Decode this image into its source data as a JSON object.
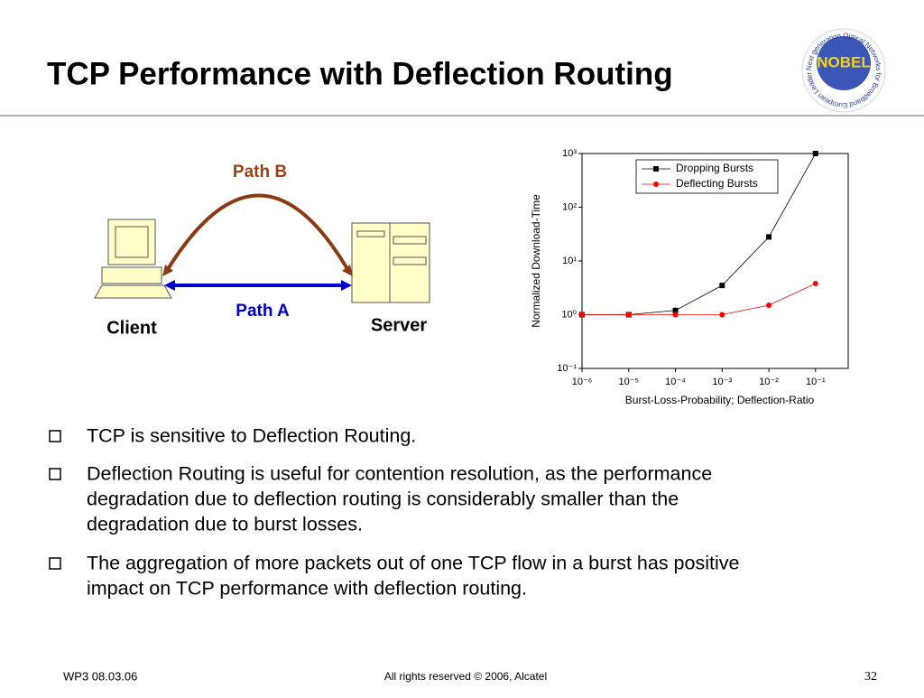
{
  "header": {
    "title": "TCP Performance with Deflection Routing",
    "logo": "NOBEL",
    "logo_ring": "Next generation Optical Networks for Broadband European Leadership"
  },
  "diagram": {
    "path_b": "Path B",
    "path_a": "Path A",
    "client": "Client",
    "server": "Server"
  },
  "chart_data": {
    "type": "line",
    "log_x": true,
    "log_y": true,
    "xlabel": "Burst-Loss-Probability; Deflection-Ratio",
    "ylabel": "Normalized Download-Time",
    "x": [
      1e-06,
      1e-05,
      0.0001,
      0.001,
      0.01,
      0.1
    ],
    "series": [
      {
        "name": "Dropping Bursts",
        "color": "#000000",
        "marker": "square",
        "values": [
          1,
          1,
          1.2,
          3.5,
          28,
          1000
        ]
      },
      {
        "name": "Deflecting Bursts",
        "color": "#ff0000",
        "marker": "circle",
        "values": [
          1,
          1,
          1,
          1,
          1.5,
          3.8
        ]
      }
    ],
    "xlim": [
      1e-06,
      0.5
    ],
    "ylim": [
      0.1,
      1000
    ],
    "xticks": [
      {
        "value": 1e-06,
        "label": "10⁻⁶"
      },
      {
        "value": 1e-05,
        "label": "10⁻⁵"
      },
      {
        "value": 0.0001,
        "label": "10⁻⁴"
      },
      {
        "value": 0.001,
        "label": "10⁻³"
      },
      {
        "value": 0.01,
        "label": "10⁻²"
      },
      {
        "value": 0.1,
        "label": "10⁻¹"
      }
    ],
    "yticks": [
      {
        "value": 0.1,
        "label": "10⁻¹"
      },
      {
        "value": 1,
        "label": "10⁰"
      },
      {
        "value": 10,
        "label": "10¹"
      },
      {
        "value": 100,
        "label": "10²"
      },
      {
        "value": 1000,
        "label": "10³"
      }
    ],
    "legend": "upper-right"
  },
  "bullets": [
    "TCP is sensitive to Deflection Routing.",
    [
      "Deflection Routing is useful for contention resolution, as the performance",
      "degradation due to deflection routing is considerably smaller than the",
      "degradation due to burst losses."
    ],
    [
      "The aggregation of more packets out of one TCP flow in a burst has positive",
      "impact on TCP performance with deflection routing."
    ]
  ],
  "footer": {
    "left": "WP3 08.03.06",
    "center": "All rights reserved © 2006, Alcatel",
    "page": "32"
  }
}
